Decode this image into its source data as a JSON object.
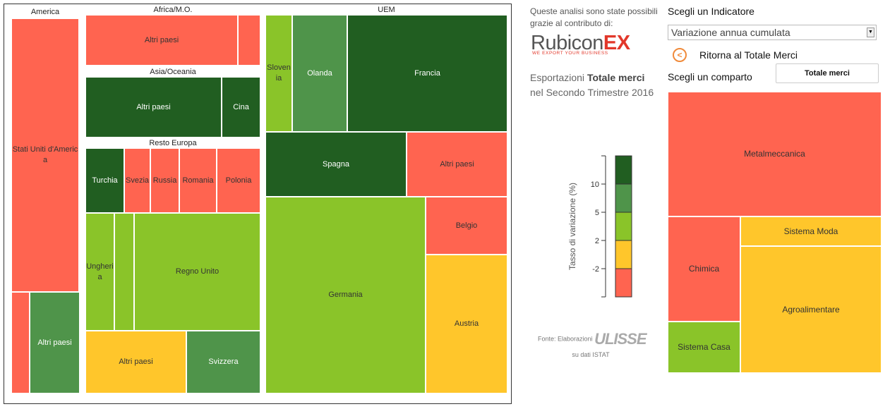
{
  "colors": {
    "dark_green": "#215e21",
    "mid_green": "#4f944a",
    "light_green": "#8ac429",
    "yellow": "#ffc62b",
    "red": "#ff6450"
  },
  "credits": {
    "text": "Queste analisi sono state possibili grazie al contributo di:",
    "logo_main": "Rubicon",
    "logo_accent": "EX",
    "logo_tagline": "WE EXPORT YOUR BUSINESS"
  },
  "heading": {
    "prefix": "Esportazioni ",
    "bold": "Totale merci",
    "suffix": "nel Secondo Trimestre 2016"
  },
  "controls": {
    "indicator_label": "Scegli un Indicatore",
    "indicator_value": "Variazione annua cumulata",
    "back_label": "Ritorna al Totale Merci",
    "sector_label": "Scegli un comparto",
    "sector_button": "Totale merci"
  },
  "source": {
    "prefix": "Fonte: Elaborazioni",
    "brand": "ULISSE",
    "suffix": "su dati ISTAT"
  },
  "chart_data": [
    {
      "type": "treemap",
      "groups": [
        {
          "name": "America",
          "items": [
            {
              "label": "Stati Uniti d'America",
              "color": "red"
            },
            {
              "label": "",
              "color": "red"
            },
            {
              "label": "Altri paesi",
              "color": "mid_green"
            }
          ]
        },
        {
          "name": "Africa/M.O.",
          "items": [
            {
              "label": "Altri paesi",
              "color": "red"
            },
            {
              "label": "",
              "color": "red"
            }
          ]
        },
        {
          "name": "Asia/Oceania",
          "items": [
            {
              "label": "Altri paesi",
              "color": "dark_green"
            },
            {
              "label": "Cina",
              "color": "dark_green"
            }
          ]
        },
        {
          "name": "Resto Europa",
          "items": [
            {
              "label": "Turchia",
              "color": "dark_green"
            },
            {
              "label": "Svezia",
              "color": "red"
            },
            {
              "label": "Russia",
              "color": "red"
            },
            {
              "label": "Romania",
              "color": "red"
            },
            {
              "label": "Polonia",
              "color": "red"
            },
            {
              "label": "Ungheria",
              "color": "light_green"
            },
            {
              "label": "",
              "color": "light_green"
            },
            {
              "label": "Regno Unito",
              "color": "light_green"
            },
            {
              "label": "Altri paesi",
              "color": "yellow"
            },
            {
              "label": "Svizzera",
              "color": "mid_green"
            }
          ]
        },
        {
          "name": "UEM",
          "items": [
            {
              "label": "Slovenia",
              "color": "light_green"
            },
            {
              "label": "Olanda",
              "color": "mid_green"
            },
            {
              "label": "Francia",
              "color": "dark_green"
            },
            {
              "label": "Spagna",
              "color": "dark_green"
            },
            {
              "label": "Altri paesi",
              "color": "red"
            },
            {
              "label": "Germania",
              "color": "light_green"
            },
            {
              "label": "Belgio",
              "color": "red"
            },
            {
              "label": "Austria",
              "color": "yellow"
            }
          ]
        }
      ]
    },
    {
      "type": "legend",
      "ylabel": "Tasso di variazione (%)",
      "ticks": [
        "10",
        "5",
        "2",
        "-2"
      ],
      "bins": [
        "dark_green",
        "mid_green",
        "light_green",
        "yellow",
        "red"
      ]
    },
    {
      "type": "treemap",
      "items": [
        {
          "label": "Metalmeccanica",
          "color": "red"
        },
        {
          "label": "Chimica",
          "color": "red"
        },
        {
          "label": "Sistema Moda",
          "color": "yellow"
        },
        {
          "label": "Agroalimentare",
          "color": "yellow"
        },
        {
          "label": "Sistema Casa",
          "color": "light_green"
        }
      ]
    }
  ]
}
